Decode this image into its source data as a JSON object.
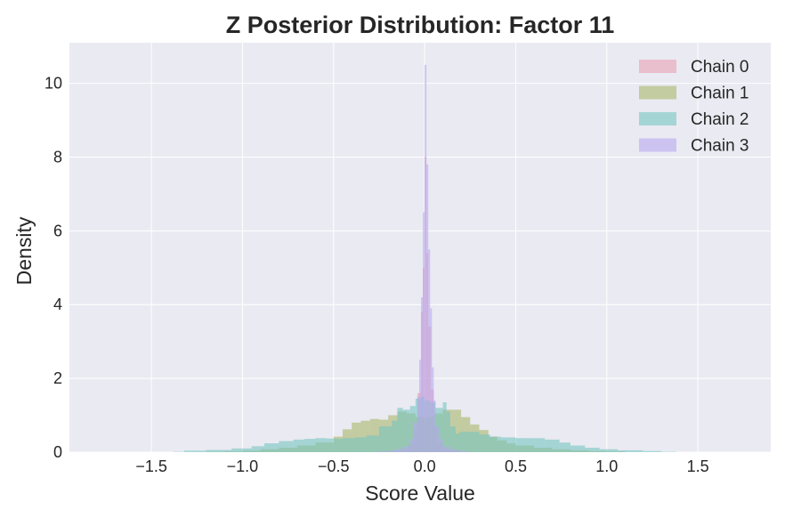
{
  "chart_data": {
    "type": "histogram",
    "title": "Z Posterior Distribution: Factor 11",
    "xlabel": "Score Value",
    "ylabel": "Density",
    "xlim": [
      -1.95,
      1.9
    ],
    "ylim": [
      0,
      11.1
    ],
    "xticks": [
      -1.5,
      -1.0,
      -0.5,
      0.0,
      0.5,
      1.0,
      1.5
    ],
    "xtick_labels": [
      "−1.5",
      "−1.0",
      "−0.5",
      "0.0",
      "0.5",
      "1.0",
      "1.5"
    ],
    "yticks": [
      0,
      2,
      4,
      6,
      8,
      10
    ],
    "ytick_labels": [
      "0",
      "2",
      "4",
      "6",
      "8",
      "10"
    ],
    "grid": true,
    "legend_position": "top-right",
    "series": [
      {
        "name": "Chain 0",
        "color": "#e8a0b4",
        "bins": [
          [
            -0.24,
            -0.2,
            0.02
          ],
          [
            -0.2,
            -0.16,
            0.03
          ],
          [
            -0.16,
            -0.12,
            0.05
          ],
          [
            -0.12,
            -0.09,
            0.08
          ],
          [
            -0.09,
            -0.06,
            0.2
          ],
          [
            -0.06,
            -0.04,
            0.6
          ],
          [
            -0.04,
            -0.02,
            1.6
          ],
          [
            -0.02,
            -0.01,
            3.8
          ],
          [
            -0.01,
            0.0,
            5.0
          ],
          [
            0.0,
            0.01,
            8.0
          ],
          [
            0.01,
            0.02,
            5.4
          ],
          [
            0.02,
            0.035,
            3.4
          ],
          [
            0.035,
            0.05,
            1.7
          ],
          [
            0.05,
            0.07,
            0.7
          ],
          [
            0.07,
            0.1,
            0.25
          ],
          [
            0.1,
            0.14,
            0.1
          ],
          [
            0.14,
            0.19,
            0.05
          ],
          [
            0.19,
            0.26,
            0.02
          ]
        ]
      },
      {
        "name": "Chain 1",
        "color": "#a8b56a",
        "bins": [
          [
            -1.2,
            -1.1,
            0.01
          ],
          [
            -1.1,
            -1.0,
            0.02
          ],
          [
            -1.0,
            -0.9,
            0.04
          ],
          [
            -0.9,
            -0.8,
            0.08
          ],
          [
            -0.8,
            -0.7,
            0.12
          ],
          [
            -0.7,
            -0.6,
            0.18
          ],
          [
            -0.6,
            -0.5,
            0.26
          ],
          [
            -0.5,
            -0.45,
            0.42
          ],
          [
            -0.45,
            -0.4,
            0.62
          ],
          [
            -0.4,
            -0.35,
            0.8
          ],
          [
            -0.35,
            -0.3,
            0.85
          ],
          [
            -0.3,
            -0.25,
            0.9
          ],
          [
            -0.25,
            -0.2,
            0.88
          ],
          [
            -0.2,
            -0.15,
            1.0
          ],
          [
            -0.15,
            -0.1,
            1.1
          ],
          [
            -0.1,
            -0.05,
            1.05
          ],
          [
            -0.05,
            0.0,
            0.95
          ],
          [
            0.0,
            0.05,
            0.95
          ],
          [
            0.05,
            0.1,
            1.05
          ],
          [
            0.1,
            0.15,
            1.15
          ],
          [
            0.15,
            0.2,
            1.15
          ],
          [
            0.2,
            0.25,
            0.95
          ],
          [
            0.25,
            0.3,
            0.75
          ],
          [
            0.3,
            0.35,
            0.6
          ],
          [
            0.35,
            0.4,
            0.42
          ],
          [
            0.4,
            0.45,
            0.32
          ],
          [
            0.45,
            0.5,
            0.24
          ],
          [
            0.5,
            0.6,
            0.18
          ],
          [
            0.6,
            0.7,
            0.12
          ],
          [
            0.7,
            0.8,
            0.08
          ],
          [
            0.8,
            0.9,
            0.05
          ],
          [
            0.9,
            1.0,
            0.03
          ],
          [
            1.0,
            1.1,
            0.02
          ]
        ]
      },
      {
        "name": "Chain 2",
        "color": "#77c4c0",
        "bins": [
          [
            -1.38,
            -1.32,
            0.01
          ],
          [
            -1.32,
            -1.2,
            0.04
          ],
          [
            -1.2,
            -1.06,
            0.06
          ],
          [
            -1.06,
            -0.95,
            0.1
          ],
          [
            -0.95,
            -0.88,
            0.16
          ],
          [
            -0.88,
            -0.8,
            0.24
          ],
          [
            -0.8,
            -0.72,
            0.3
          ],
          [
            -0.72,
            -0.66,
            0.34
          ],
          [
            -0.66,
            -0.6,
            0.36
          ],
          [
            -0.6,
            -0.54,
            0.38
          ],
          [
            -0.54,
            -0.5,
            0.37
          ],
          [
            -0.5,
            -0.45,
            0.36
          ],
          [
            -0.45,
            -0.38,
            0.38
          ],
          [
            -0.38,
            -0.32,
            0.4
          ],
          [
            -0.32,
            -0.25,
            0.45
          ],
          [
            -0.25,
            -0.18,
            0.7
          ],
          [
            -0.18,
            -0.15,
            0.85
          ],
          [
            -0.15,
            -0.12,
            1.2
          ],
          [
            -0.12,
            -0.08,
            1.15
          ],
          [
            -0.08,
            -0.05,
            1.25
          ],
          [
            -0.05,
            -0.02,
            1.45
          ],
          [
            -0.02,
            0.0,
            1.5
          ],
          [
            0.0,
            0.03,
            1.4
          ],
          [
            0.03,
            0.06,
            1.35
          ],
          [
            0.06,
            0.1,
            1.2
          ],
          [
            0.1,
            0.12,
            1.35
          ],
          [
            0.12,
            0.14,
            1.1
          ],
          [
            0.14,
            0.17,
            0.7
          ],
          [
            0.17,
            0.19,
            0.5
          ],
          [
            0.19,
            0.3,
            0.55
          ],
          [
            0.3,
            0.36,
            0.48
          ],
          [
            0.36,
            0.42,
            0.42
          ],
          [
            0.42,
            0.5,
            0.4
          ],
          [
            0.5,
            0.58,
            0.38
          ],
          [
            0.58,
            0.66,
            0.38
          ],
          [
            0.66,
            0.74,
            0.34
          ],
          [
            0.74,
            0.8,
            0.26
          ],
          [
            0.8,
            0.88,
            0.18
          ],
          [
            0.88,
            0.96,
            0.12
          ],
          [
            0.96,
            1.06,
            0.08
          ],
          [
            1.06,
            1.2,
            0.05
          ],
          [
            1.2,
            1.3,
            0.03
          ],
          [
            1.3,
            1.38,
            0.01
          ]
        ]
      },
      {
        "name": "Chain 3",
        "color": "#b8a8f0",
        "bins": [
          [
            -0.26,
            -0.2,
            0.02
          ],
          [
            -0.2,
            -0.16,
            0.04
          ],
          [
            -0.16,
            -0.12,
            0.08
          ],
          [
            -0.12,
            -0.08,
            0.15
          ],
          [
            -0.08,
            -0.06,
            0.35
          ],
          [
            -0.06,
            -0.04,
            0.8
          ],
          [
            -0.04,
            -0.03,
            1.5
          ],
          [
            -0.03,
            -0.02,
            2.5
          ],
          [
            -0.02,
            -0.01,
            4.2
          ],
          [
            -0.01,
            0.0,
            6.5
          ],
          [
            0.0,
            0.01,
            10.5
          ],
          [
            0.01,
            0.02,
            7.8
          ],
          [
            0.02,
            0.03,
            5.5
          ],
          [
            0.03,
            0.04,
            3.9
          ],
          [
            0.04,
            0.05,
            2.3
          ],
          [
            0.05,
            0.06,
            1.4
          ],
          [
            0.06,
            0.08,
            0.7
          ],
          [
            0.08,
            0.1,
            0.35
          ],
          [
            0.1,
            0.14,
            0.15
          ],
          [
            0.14,
            0.18,
            0.07
          ],
          [
            0.18,
            0.24,
            0.03
          ]
        ]
      }
    ]
  }
}
